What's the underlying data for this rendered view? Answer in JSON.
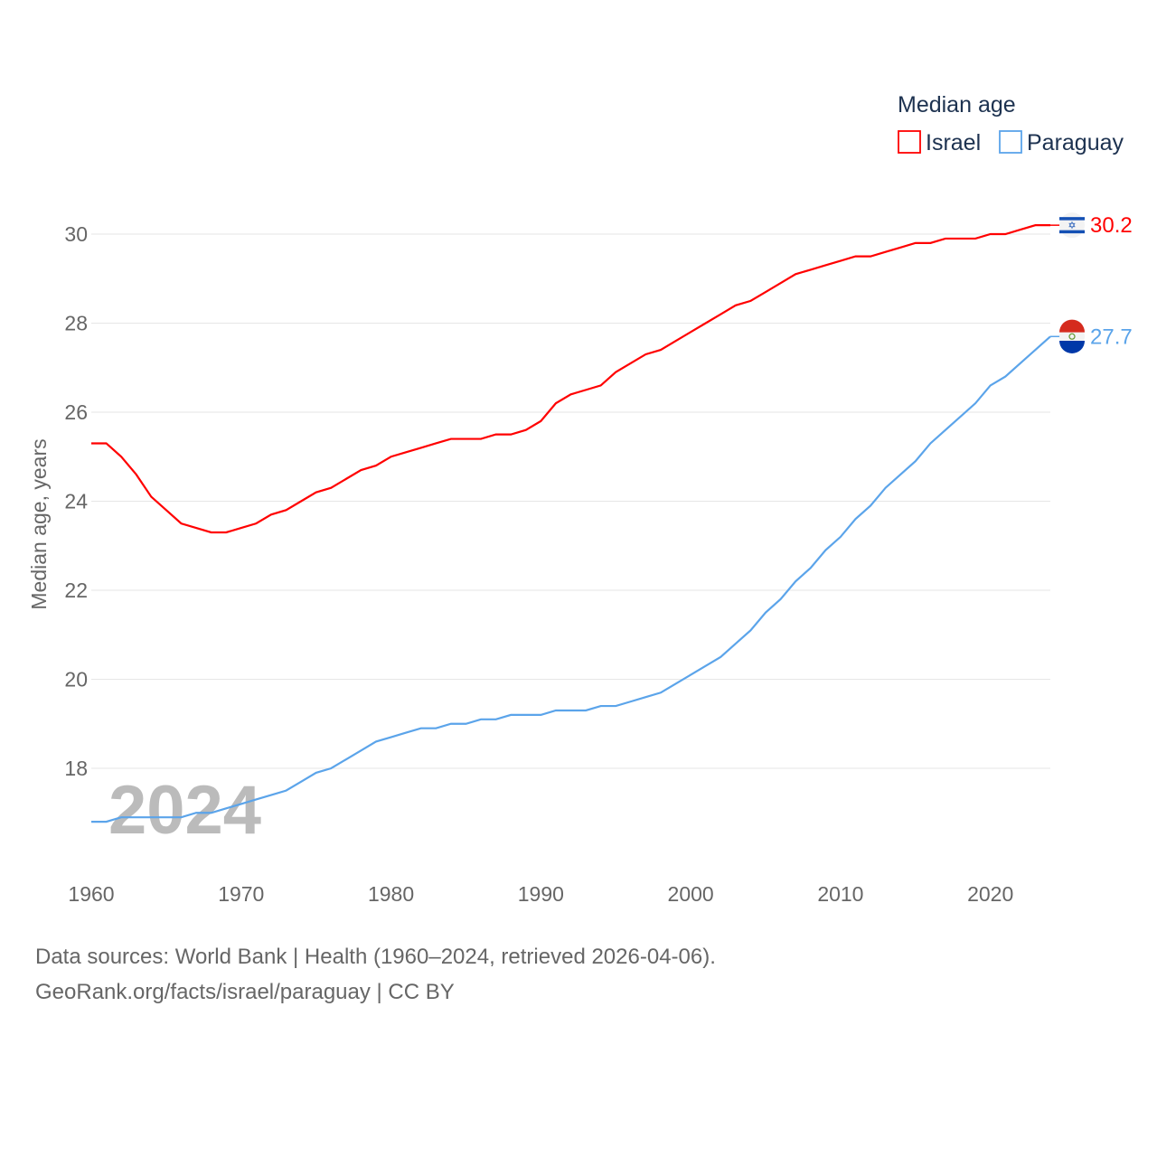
{
  "chart_data": {
    "type": "line",
    "legend_title": "Median age",
    "ylabel": "Median age, years",
    "xlabel": "",
    "xlim": [
      1960,
      2024
    ],
    "ylim": [
      16,
      31
    ],
    "xticks": [
      "1960",
      "1970",
      "1980",
      "1990",
      "2000",
      "2010",
      "2020"
    ],
    "yticks": [
      "18",
      "20",
      "22",
      "24",
      "26",
      "28",
      "30"
    ],
    "year_label": "2024",
    "legend_placement": "top-right",
    "x": [
      1960,
      1961,
      1962,
      1963,
      1964,
      1965,
      1966,
      1967,
      1968,
      1969,
      1970,
      1971,
      1972,
      1973,
      1974,
      1975,
      1976,
      1977,
      1978,
      1979,
      1980,
      1981,
      1982,
      1983,
      1984,
      1985,
      1986,
      1987,
      1988,
      1989,
      1990,
      1991,
      1992,
      1993,
      1994,
      1995,
      1996,
      1997,
      1998,
      1999,
      2000,
      2001,
      2002,
      2003,
      2004,
      2005,
      2006,
      2007,
      2008,
      2009,
      2010,
      2011,
      2012,
      2013,
      2014,
      2015,
      2016,
      2017,
      2018,
      2019,
      2020,
      2021,
      2022,
      2023,
      2024
    ],
    "series": [
      {
        "name": "Israel",
        "color": "#ff0000",
        "end_label": "30.2",
        "flag": "israel-flag",
        "values": [
          25.3,
          25.3,
          25.0,
          24.6,
          24.1,
          23.8,
          23.5,
          23.4,
          23.3,
          23.3,
          23.4,
          23.5,
          23.7,
          23.8,
          24.0,
          24.2,
          24.3,
          24.5,
          24.7,
          24.8,
          25.0,
          25.1,
          25.2,
          25.3,
          25.4,
          25.4,
          25.4,
          25.5,
          25.5,
          25.6,
          25.8,
          26.2,
          26.4,
          26.5,
          26.6,
          26.9,
          27.1,
          27.3,
          27.4,
          27.6,
          27.8,
          28.0,
          28.2,
          28.4,
          28.5,
          28.7,
          28.9,
          29.1,
          29.2,
          29.3,
          29.4,
          29.5,
          29.5,
          29.6,
          29.7,
          29.8,
          29.8,
          29.9,
          29.9,
          29.9,
          30.0,
          30.0,
          30.1,
          30.2,
          30.2
        ]
      },
      {
        "name": "Paraguay",
        "color": "#5ba4ea",
        "end_label": "27.7",
        "flag": "paraguay-flag",
        "values": [
          16.8,
          16.8,
          16.9,
          16.9,
          16.9,
          16.9,
          16.9,
          17.0,
          17.0,
          17.1,
          17.2,
          17.3,
          17.4,
          17.5,
          17.7,
          17.9,
          18.0,
          18.2,
          18.4,
          18.6,
          18.7,
          18.8,
          18.9,
          18.9,
          19.0,
          19.0,
          19.1,
          19.1,
          19.2,
          19.2,
          19.2,
          19.3,
          19.3,
          19.3,
          19.4,
          19.4,
          19.5,
          19.6,
          19.7,
          19.9,
          20.1,
          20.3,
          20.5,
          20.8,
          21.1,
          21.5,
          21.8,
          22.2,
          22.5,
          22.9,
          23.2,
          23.6,
          23.9,
          24.3,
          24.6,
          24.9,
          25.3,
          25.6,
          25.9,
          26.2,
          26.6,
          26.8,
          27.1,
          27.4,
          27.7
        ]
      }
    ]
  },
  "footer": {
    "line1": "Data sources: World Bank | Health (1960–2024, retrieved 2026-04-06).",
    "line2": "GeoRank.org/facts/israel/paraguay | CC BY"
  }
}
